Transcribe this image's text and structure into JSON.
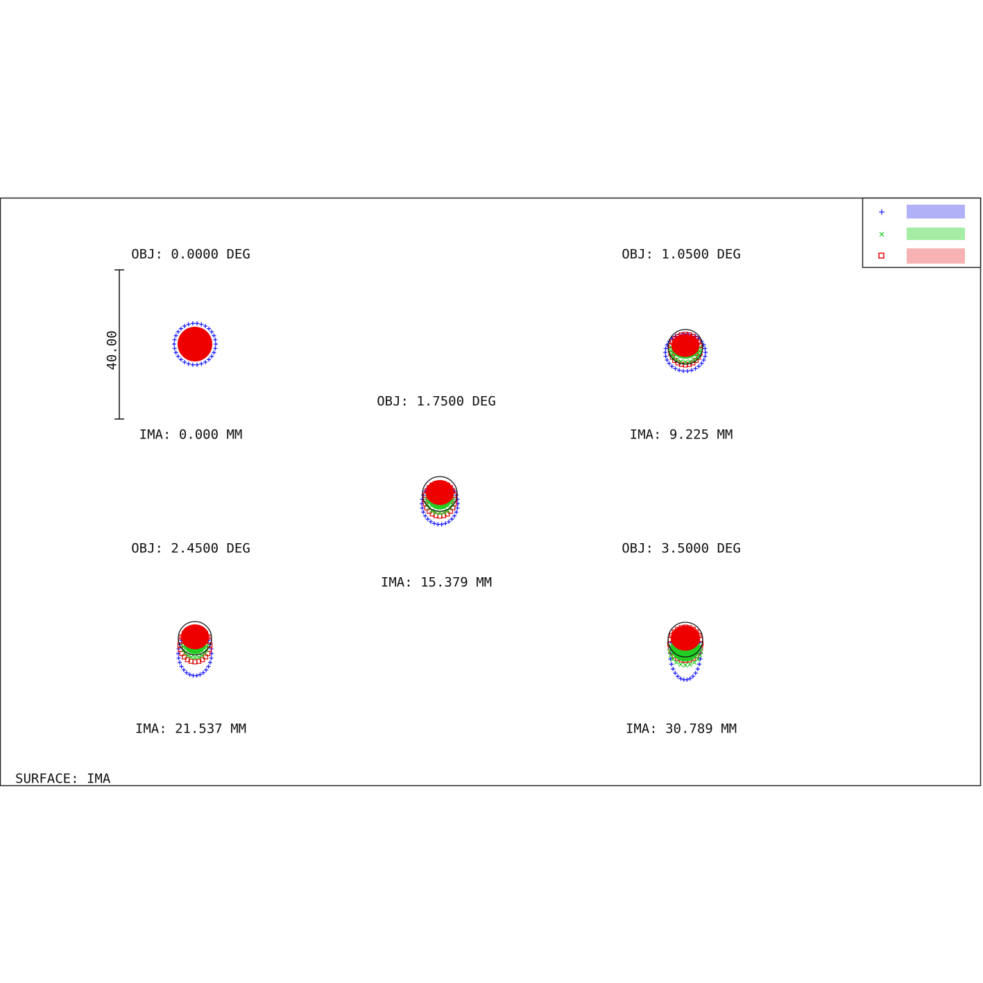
{
  "plot": {
    "fields": [
      {
        "obj": "OBJ: 0.0000 DEG",
        "ima": "IMA: 0.000 MM"
      },
      {
        "obj": "OBJ: 1.0500 DEG",
        "ima": "IMA: 9.225 MM"
      },
      {
        "obj": "OBJ: 1.7500 DEG",
        "ima": "IMA: 15.379 MM"
      },
      {
        "obj": "OBJ: 2.4500 DEG",
        "ima": "IMA: 21.537 MM"
      },
      {
        "obj": "OBJ: 3.5000 DEG",
        "ima": "IMA: 30.789 MM"
      }
    ],
    "scale_bar": "40.00",
    "surface": "SURFACE: IMA"
  }
}
